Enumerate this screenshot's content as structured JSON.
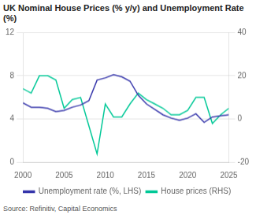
{
  "chart_data": {
    "type": "line",
    "title": "UK Nominal House Prices (% y/y) and Unemployment Rate (%)",
    "annotations": [
      "Source: Refinitiv, Capital Economics"
    ],
    "x": [
      2000,
      2001,
      2002,
      2003,
      2004,
      2005,
      2006,
      2007,
      2008,
      2009,
      2010,
      2011,
      2012,
      2013,
      2014,
      2015,
      2016,
      2017,
      2018,
      2019,
      2020,
      2021,
      2022,
      2023,
      2024,
      2025
    ],
    "series": [
      {
        "name": "Unemployment rate (%, LHS)",
        "color": "#3535aa",
        "values": [
          5.5,
          5.1,
          5.1,
          5.0,
          4.7,
          4.8,
          5.1,
          5.3,
          5.7,
          7.6,
          7.8,
          8.1,
          7.9,
          7.5,
          6.2,
          5.4,
          4.9,
          4.4,
          4.1,
          3.9,
          4.1,
          4.5,
          3.7,
          4.2,
          4.3,
          4.4
        ]
      },
      {
        "name": "House prices (RHS)",
        "color": "#00c897",
        "axis": "y2",
        "values": [
          14,
          12,
          20,
          20,
          18,
          5,
          9,
          10,
          -3,
          -16,
          7,
          1,
          1,
          7,
          12,
          9,
          7,
          5,
          2,
          2,
          4,
          10,
          10,
          -2,
          2,
          5
        ]
      }
    ],
    "xlim": [
      2000,
      2025
    ],
    "xticks": [
      2000,
      2005,
      2010,
      2015,
      2020,
      2025
    ],
    "ylim": [
      0,
      12
    ],
    "yticks": [
      0,
      4,
      8,
      12
    ],
    "y2lim": [
      -20,
      40
    ],
    "y2ticks": [
      -20,
      0,
      20,
      40
    ],
    "grid": true,
    "legend": "bottom"
  }
}
